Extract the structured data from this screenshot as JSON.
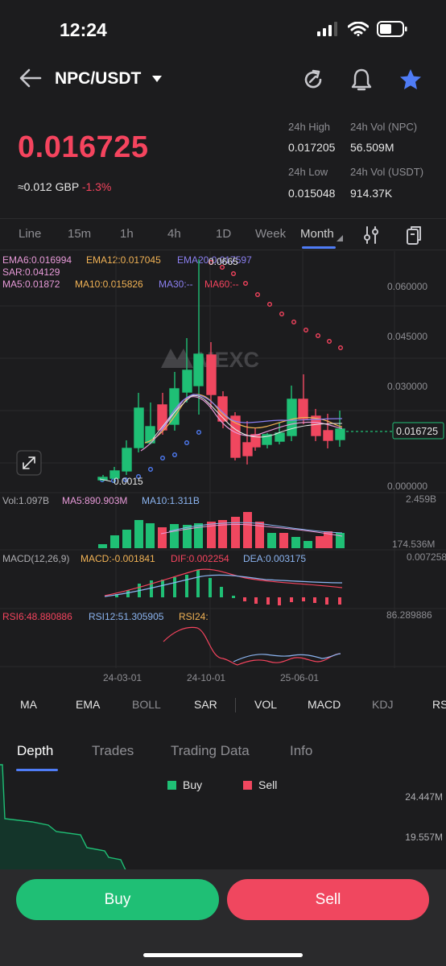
{
  "status": {
    "time": "12:24"
  },
  "header": {
    "pair": "NPC/USDT",
    "icons": [
      "back-arrow-icon",
      "caret-down-icon",
      "refresh-icon",
      "bell-icon",
      "star-icon"
    ]
  },
  "price": {
    "last": "0.016725",
    "fiat": "≈0.012 GBP",
    "change": "-1.3%",
    "stats": {
      "high_label": "24h High",
      "high_value": "0.017205",
      "vol_npc_label": "24h Vol (NPC)",
      "vol_npc_value": "56.509M",
      "low_label": "24h Low",
      "low_value": "0.015048",
      "vol_usdt_label": "24h Vol  (USDT)",
      "vol_usdt_value": "914.37K"
    }
  },
  "timeframes": [
    "Line",
    "15m",
    "1h",
    "4h",
    "1D",
    "Week",
    "Month"
  ],
  "active_timeframe": "Month",
  "indicators": {
    "ema6": "EMA6:0.016994",
    "ema12": "EMA12:0.017045",
    "ema20": "EMA20:0.017597",
    "sar": "SAR:0.04129",
    "ma5": "MA5:0.01872",
    "ma10": "MA10:0.015826",
    "ma30": "MA30:--",
    "ma60": "MA60:--"
  },
  "price_axis": [
    "0.060000",
    "0.045000",
    "0.030000",
    "0.016725",
    "0.000000"
  ],
  "annotations": {
    "high": "0.0665",
    "low": "0.0015",
    "watermark": "MEXC"
  },
  "volume": {
    "vol": "Vol:1.097B",
    "ma5": "MA5:890.903M",
    "ma10": "MA10:1.311B",
    "axis_max": "2.459B",
    "axis_min": "174.536M"
  },
  "macd": {
    "title": "MACD(12,26,9)",
    "macd": "MACD:-0.001841",
    "dif": "DIF:0.002254",
    "dea": "DEA:0.003175",
    "axis_max": "0.007258"
  },
  "rsi": {
    "rsi6": "RSI6:48.880886",
    "rsi12": "RSI12:51.305905",
    "rsi24": "RSI24:",
    "axis_max": "86.289886"
  },
  "x_axis": [
    "24-03-01",
    "24-10-01",
    "25-06-01"
  ],
  "indicator_bar": [
    "MA",
    "EMA",
    "BOLL",
    "SAR",
    "VOL",
    "MACD",
    "KDJ",
    "RS"
  ],
  "bottom_tabs": [
    "Depth",
    "Trades",
    "Trading Data",
    "Info"
  ],
  "depth": {
    "buy_label": "Buy",
    "sell_label": "Sell",
    "axis_1": "24.447M",
    "axis_2": "19.557M"
  },
  "actions": {
    "buy": "Buy",
    "sell": "Sell"
  },
  "colors": {
    "up": "#1fbf75",
    "down": "#f0475f",
    "accent": "#4f7cf6",
    "bg": "#1c1c1e"
  }
}
